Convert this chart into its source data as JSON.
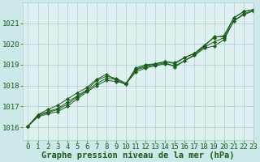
{
  "xlabel": "Graphe pression niveau de la mer (hPa)",
  "xlim": [
    -0.5,
    23
  ],
  "ylim": [
    1015.4,
    1022.0
  ],
  "yticks": [
    1016,
    1017,
    1018,
    1019,
    1020,
    1021
  ],
  "xticks": [
    0,
    1,
    2,
    3,
    4,
    5,
    6,
    7,
    8,
    9,
    10,
    11,
    12,
    13,
    14,
    15,
    16,
    17,
    18,
    19,
    20,
    21,
    22,
    23
  ],
  "bg_color": "#cce8e8",
  "plot_bg_color": "#dff0f0",
  "grid_color": "#aacccc",
  "line_color": "#1a5c1a",
  "marker_color": "#1a5c1a",
  "series": [
    [
      1016.05,
      1016.6,
      1016.85,
      1017.05,
      1017.35,
      1017.65,
      1017.9,
      1018.3,
      1018.55,
      1018.25,
      1018.05,
      1018.8,
      1018.95,
      1019.05,
      1019.15,
      1019.05,
      1019.35,
      1019.55,
      1019.9,
      1020.35,
      1020.35,
      1021.25,
      1021.55,
      1021.65
    ],
    [
      1016.05,
      1016.6,
      1016.75,
      1016.9,
      1017.2,
      1017.5,
      1017.8,
      1018.25,
      1018.45,
      1018.35,
      1018.1,
      1018.85,
      1019.0,
      1019.05,
      1019.15,
      1019.1,
      1019.35,
      1019.55,
      1019.95,
      1020.3,
      1020.4,
      1021.25,
      1021.55,
      1021.65
    ],
    [
      1016.05,
      1016.55,
      1016.7,
      1016.85,
      1017.1,
      1017.45,
      1017.75,
      1018.1,
      1018.35,
      1018.3,
      1018.1,
      1018.75,
      1018.9,
      1019.0,
      1019.1,
      1018.9,
      1019.2,
      1019.5,
      1019.85,
      1020.1,
      1020.3,
      1021.1,
      1021.45,
      1021.6
    ],
    [
      1016.05,
      1016.5,
      1016.65,
      1016.75,
      1017.0,
      1017.35,
      1017.7,
      1018.0,
      1018.25,
      1018.2,
      1018.1,
      1018.65,
      1018.85,
      1018.95,
      1019.05,
      1018.95,
      1019.2,
      1019.45,
      1019.8,
      1019.9,
      1020.2,
      1021.1,
      1021.4,
      1021.58
    ]
  ],
  "font_color": "#1a5c1a",
  "tick_fontsize": 6.5,
  "label_fontsize": 7.5
}
